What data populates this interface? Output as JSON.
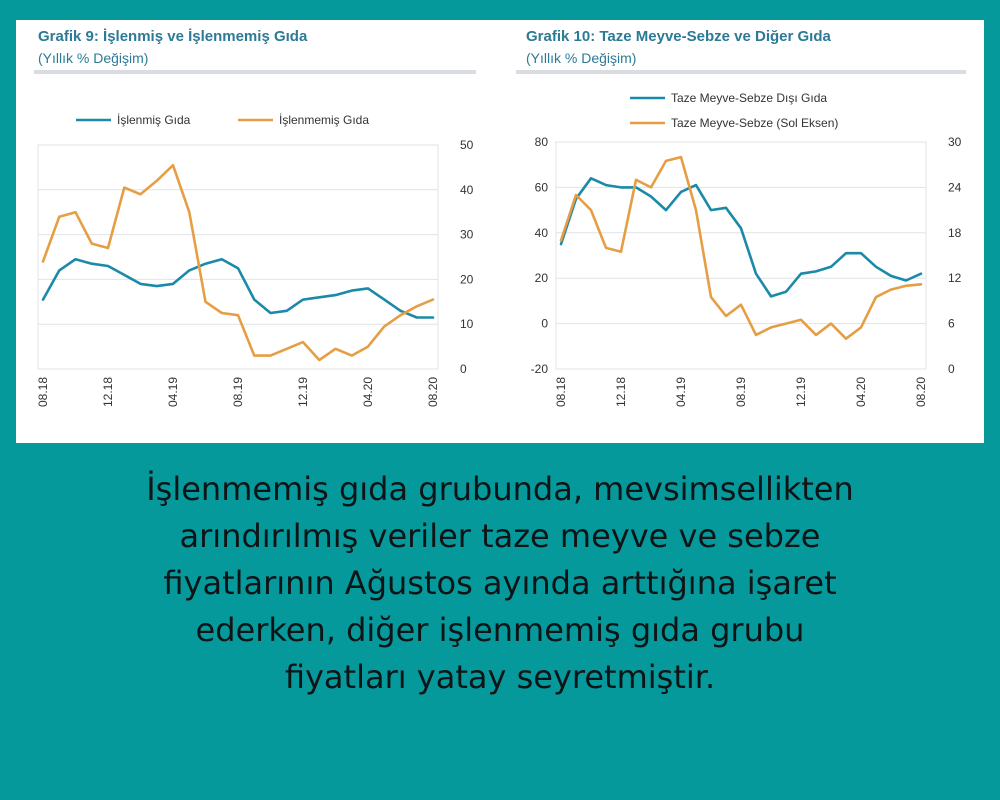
{
  "colors": {
    "background": "#06999c",
    "blue": "#1b8aa9",
    "orange": "#e59e44",
    "title": "#2c7a95"
  },
  "chart_data": [
    {
      "type": "line",
      "title": "Grafik 9: İşlenmiş ve İşlenmemiş Gıda",
      "subtitle": "(Yıllık % Değişim)",
      "x": [
        "08.18",
        "09.18",
        "10.18",
        "11.18",
        "12.18",
        "01.19",
        "02.19",
        "03.19",
        "04.19",
        "05.19",
        "06.19",
        "07.19",
        "08.19",
        "09.19",
        "10.19",
        "11.19",
        "12.19",
        "01.20",
        "02.20",
        "03.20",
        "04.20",
        "05.20",
        "06.20",
        "07.20",
        "08.20"
      ],
      "x_ticks": [
        "08.18",
        "12.18",
        "04.19",
        "08.19",
        "12.19",
        "04.20",
        "08.20"
      ],
      "y_axis": "right",
      "ylim": [
        0,
        50
      ],
      "y_ticks": [
        "0",
        "10",
        "20",
        "30",
        "40",
        "50"
      ],
      "legend_position": "top",
      "series": [
        {
          "name": "İşlenmiş Gıda",
          "color": "#1b8aa9",
          "values": [
            15.5,
            22,
            24.5,
            23.5,
            23,
            21,
            19,
            18.5,
            19,
            22,
            23.5,
            24.5,
            22.5,
            15.5,
            12.5,
            13,
            15.5,
            16,
            16.5,
            17.5,
            18,
            15.5,
            13,
            11.5,
            11.5
          ]
        },
        {
          "name": "İşlenmemiş Gıda",
          "color": "#e59e44",
          "values": [
            24,
            34,
            35,
            28,
            27,
            40.5,
            39,
            42,
            45.5,
            35,
            15,
            12.5,
            12,
            3,
            3,
            4.5,
            6,
            2,
            4.5,
            3,
            5,
            9.5,
            12,
            14,
            15.5
          ]
        }
      ]
    },
    {
      "type": "line",
      "title": "Grafik 10: Taze Meyve-Sebze ve Diğer Gıda",
      "subtitle": "(Yıllık % Değişim)",
      "x": [
        "08.18",
        "09.18",
        "10.18",
        "11.18",
        "12.18",
        "01.19",
        "02.19",
        "03.19",
        "04.19",
        "05.19",
        "06.19",
        "07.19",
        "08.19",
        "09.19",
        "10.19",
        "11.19",
        "12.19",
        "01.20",
        "02.20",
        "03.20",
        "04.20",
        "05.20",
        "06.20",
        "07.20",
        "08.20"
      ],
      "x_ticks": [
        "08.18",
        "12.18",
        "04.19",
        "08.19",
        "12.19",
        "04.20",
        "08.20"
      ],
      "left_axis": {
        "ylim": [
          -20,
          80
        ],
        "y_ticks": [
          "-20",
          "0",
          "20",
          "40",
          "60",
          "80"
        ]
      },
      "right_axis": {
        "ylim": [
          0,
          30
        ],
        "y_ticks": [
          "0",
          "6",
          "12",
          "18",
          "24",
          "30"
        ]
      },
      "legend_position": "top",
      "series": [
        {
          "name": "Taze Meyve-Sebze Dışı Gıda",
          "color": "#1b8aa9",
          "axis": "left",
          "values": [
            35,
            55,
            64,
            61,
            60,
            60,
            56,
            50,
            58,
            61,
            50,
            51,
            42,
            22,
            12,
            14,
            22,
            23,
            25,
            31,
            31,
            25,
            21,
            19,
            22
          ]
        },
        {
          "name": "Taze Meyve-Sebze (Sol Eksen)",
          "color": "#e59e44",
          "axis": "right",
          "values": [
            17,
            23,
            21,
            16,
            15.5,
            25,
            24,
            27.5,
            28,
            21,
            9.5,
            7,
            8.5,
            4.5,
            5.5,
            6,
            6.5,
            4.5,
            6,
            4,
            5.5,
            9.5,
            10.5,
            11,
            11.2
          ]
        }
      ]
    }
  ],
  "caption": {
    "lines": [
      "İşlenmemiş gıda grubunda, mevsimsellikten",
      "arındırılmış veriler taze meyve ve sebze",
      "fiyatlarının Ağustos ayında arttığına işaret",
      "ederken, diğer işlenmemiş gıda grubu",
      "fiyatları yatay seyretmiştir."
    ]
  }
}
